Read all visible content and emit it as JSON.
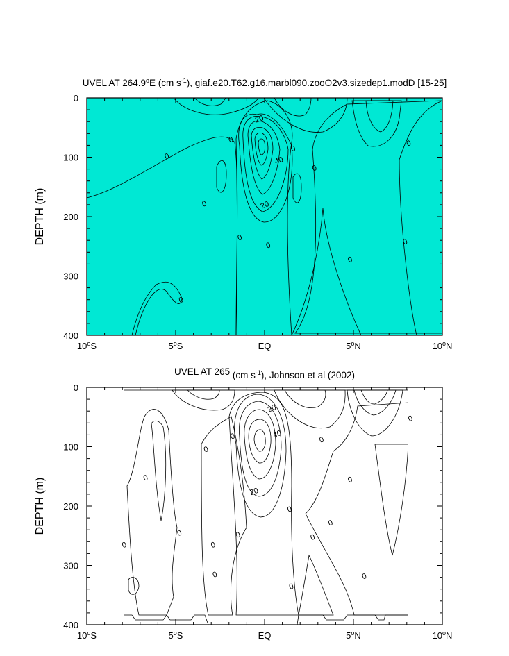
{
  "chart_data": [
    {
      "type": "contour",
      "title": "UVEL AT 264.9°E (cm s⁻¹), giaf.e20.T62.g16.marbl090.zooO2v3.sizedep1.modD [15-25]",
      "title_parts": {
        "prefix": "UVEL AT 264.9",
        "deg": "o",
        "mid": "E (cm s",
        "exp": "-1",
        "suffix": "), giaf.e20.T62.g16.marbl090.zooO2v3.sizedep1.modD [15-25]"
      },
      "ylabel": "DEPTH (m)",
      "xlim": [
        -10,
        10
      ],
      "ylim": [
        400,
        0
      ],
      "x_ticks": [
        {
          "value": -10,
          "num": "10",
          "deg": "o",
          "hemi": "S"
        },
        {
          "value": -5,
          "num": "5",
          "deg": "o",
          "hemi": "S"
        },
        {
          "value": 0,
          "num": "EQ",
          "deg": "",
          "hemi": ""
        },
        {
          "value": 5,
          "num": "5",
          "deg": "o",
          "hemi": "N"
        },
        {
          "value": 10,
          "num": "10",
          "deg": "o",
          "hemi": "N"
        }
      ],
      "y_ticks": [
        0,
        100,
        200,
        300,
        400
      ],
      "contour_labels": [
        {
          "text": "20",
          "x": -0.3,
          "y": 35
        },
        {
          "text": "40",
          "x": 0.8,
          "y": 105
        },
        {
          "text": "20",
          "x": 0.0,
          "y": 180
        },
        {
          "text": "0",
          "x": -5.5,
          "y": 98
        },
        {
          "text": "0",
          "x": -3.4,
          "y": 178
        },
        {
          "text": "0",
          "x": -1.9,
          "y": 70
        },
        {
          "text": "0",
          "x": 1.6,
          "y": 85
        },
        {
          "text": "0",
          "x": 2.8,
          "y": 118
        },
        {
          "text": "0",
          "x": -1.4,
          "y": 235
        },
        {
          "text": "0",
          "x": 0.2,
          "y": 248
        },
        {
          "text": "0",
          "x": -4.7,
          "y": 340
        },
        {
          "text": "0",
          "x": 4.8,
          "y": 272
        },
        {
          "text": "0",
          "x": 8.1,
          "y": 76
        },
        {
          "text": "0",
          "x": 7.9,
          "y": 242
        }
      ]
    },
    {
      "type": "contour",
      "title": "UVEL AT 265 (cm s⁻¹), Johnson et al (2002)",
      "title_parts": {
        "prefix": "UVEL AT 265",
        "deg": "",
        "mid": " (cm s",
        "exp": "-1",
        "suffix": "), Johnson et al (2002)"
      },
      "ylabel": "DEPTH (m)",
      "xlim": [
        -10,
        10
      ],
      "ylim": [
        400,
        0
      ],
      "x_ticks": [
        {
          "value": -10,
          "num": "10",
          "deg": "o",
          "hemi": "S"
        },
        {
          "value": -5,
          "num": "5",
          "deg": "o",
          "hemi": "S"
        },
        {
          "value": 0,
          "num": "EQ",
          "deg": "",
          "hemi": ""
        },
        {
          "value": 5,
          "num": "5",
          "deg": "o",
          "hemi": "N"
        },
        {
          "value": 10,
          "num": "10",
          "deg": "o",
          "hemi": "N"
        }
      ],
      "y_ticks": [
        0,
        100,
        200,
        300,
        400
      ],
      "contour_labels": [
        {
          "text": "20",
          "x": 0.4,
          "y": 35
        },
        {
          "text": "40",
          "x": 0.7,
          "y": 78
        },
        {
          "text": "20",
          "x": -0.6,
          "y": 175
        },
        {
          "text": "0",
          "x": -1.8,
          "y": 82
        },
        {
          "text": "0",
          "x": -3.3,
          "y": 104
        },
        {
          "text": "0",
          "x": -6.7,
          "y": 152
        },
        {
          "text": "0",
          "x": -7.9,
          "y": 265
        },
        {
          "text": "0",
          "x": -4.8,
          "y": 245
        },
        {
          "text": "0",
          "x": -2.9,
          "y": 265
        },
        {
          "text": "0",
          "x": -2.8,
          "y": 315
        },
        {
          "text": "0",
          "x": -1.5,
          "y": 248
        },
        {
          "text": "0",
          "x": 1.4,
          "y": 205
        },
        {
          "text": "0",
          "x": 1.5,
          "y": 335
        },
        {
          "text": "0",
          "x": 2.7,
          "y": 252
        },
        {
          "text": "0",
          "x": 3.7,
          "y": 228
        },
        {
          "text": "0",
          "x": 3.2,
          "y": 88
        },
        {
          "text": "0",
          "x": 4.8,
          "y": 155
        },
        {
          "text": "0",
          "x": 5.6,
          "y": 318
        },
        {
          "text": "0",
          "x": 8.2,
          "y": 52
        }
      ]
    }
  ],
  "colors": {
    "blue_dark": "#2f8cff",
    "blue_light": "#33ccff",
    "cyan": "#00e8d4",
    "green": "#33dd55",
    "green_bright": "#66ee00",
    "yellow": "#ffee33",
    "orange_yellow": "#ffcc33",
    "orange": "#f08030",
    "red": "#e82818"
  }
}
